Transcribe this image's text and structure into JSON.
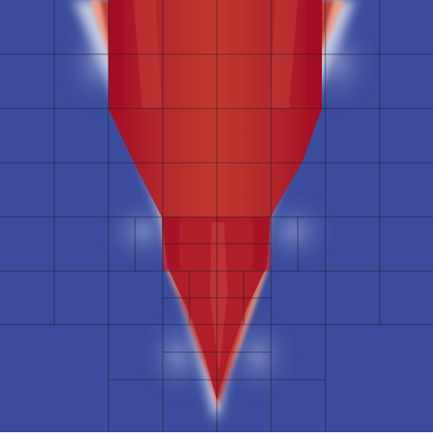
{
  "render": {
    "colormap": {
      "low": "#3b4c9c",
      "mid": "#dcdcdc",
      "high": "#b40426"
    },
    "background": "#ffffff",
    "mesh_line_color": "#1e1e32",
    "shading": {
      "red_dark": "#a30d24",
      "red_mid": "#b3282b",
      "red_light": "#c23a35",
      "blue_main": "#3b4c9c",
      "blue_light": "#8c9fd2",
      "blue_pale": "#b8c6e6"
    }
  }
}
